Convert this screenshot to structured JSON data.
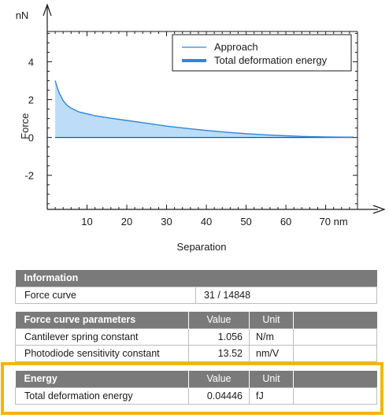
{
  "chart_data": {
    "type": "area",
    "title": "",
    "xlabel": "Separation",
    "ylabel": "Force",
    "x_unit": "nm",
    "y_unit": "nN",
    "xlim": [
      0,
      78
    ],
    "ylim": [
      -3.8,
      5.6
    ],
    "x_ticks": [
      10,
      20,
      30,
      40,
      50,
      60,
      70
    ],
    "x_tick_labels": [
      "10",
      "20",
      "30",
      "40",
      "50",
      "60",
      "70 nm"
    ],
    "y_ticks": [
      -2,
      0,
      2,
      4
    ],
    "y_tick_labels": [
      "-2",
      "0",
      "2",
      "4"
    ],
    "legend": {
      "placement": "top-right",
      "entries": [
        "Approach",
        "Total deformation energy"
      ]
    },
    "colors": {
      "line": "#2e86de",
      "fill": "#bcdcf8"
    },
    "series": [
      {
        "name": "Approach",
        "x": [
          2,
          2.5,
          3,
          4,
          5,
          6,
          8,
          10,
          12,
          15,
          20,
          25,
          30,
          35,
          40,
          45,
          50,
          55,
          60,
          65,
          70,
          75,
          77
        ],
        "y": [
          3.0,
          2.65,
          2.35,
          1.95,
          1.7,
          1.55,
          1.35,
          1.25,
          1.15,
          1.05,
          0.9,
          0.75,
          0.6,
          0.48,
          0.37,
          0.28,
          0.2,
          0.14,
          0.09,
          0.05,
          0.03,
          0.02,
          0.02
        ]
      },
      {
        "name": "Total deformation energy",
        "shading": "area between Approach curve and zero line"
      }
    ]
  },
  "info_table": {
    "header": "Information",
    "rows": [
      {
        "label": "Force curve",
        "value": "31 / 14848"
      }
    ]
  },
  "params_table": {
    "header": "Force curve parameters",
    "value_header": "Value",
    "unit_header": "Unit",
    "rows": [
      {
        "label": "Cantilever spring constant",
        "value": "1.056",
        "unit": "N/m"
      },
      {
        "label": "Photodiode sensitivity constant",
        "value": "13.52",
        "unit": "nm/V"
      }
    ]
  },
  "energy_table": {
    "header": "Energy",
    "value_header": "Value",
    "unit_header": "Unit",
    "rows": [
      {
        "label": "Total deformation energy",
        "value": "0.04446",
        "unit": "fJ"
      }
    ],
    "highlight_color": "#f2b705"
  }
}
